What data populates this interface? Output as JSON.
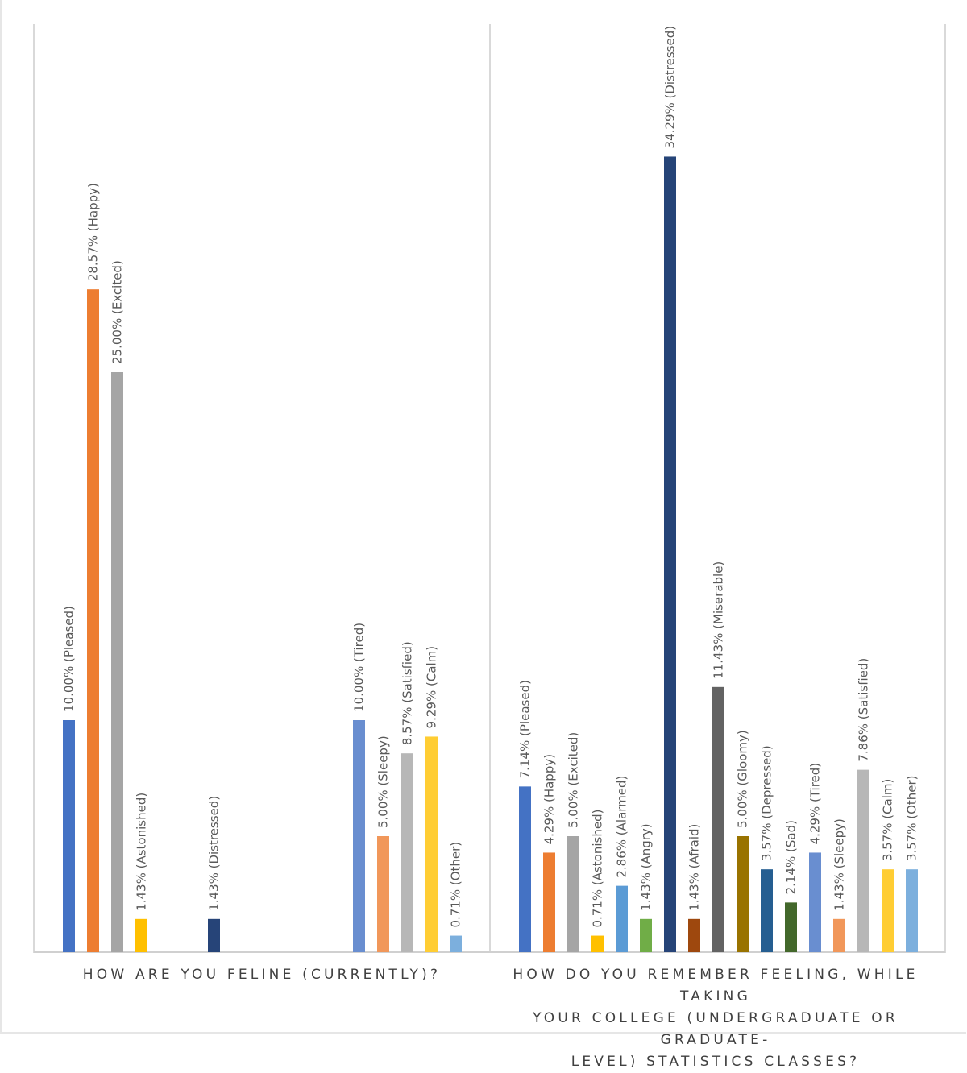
{
  "chart_data": [
    {
      "type": "bar",
      "title": "",
      "xlabel": "How are you feline (currently)?",
      "ylabel": "",
      "ylim": [
        0,
        40
      ],
      "grid": false,
      "legend": "none",
      "categories": [
        "Pleased",
        "Happy",
        "Excited",
        "Astonished",
        "Alarmed",
        "Angry",
        "Distressed",
        "Afraid",
        "Miserable",
        "Gloomy",
        "Depressed",
        "Sad",
        "Tired",
        "Sleepy",
        "Satisfied",
        "Calm",
        "Other"
      ],
      "values": [
        10.0,
        28.57,
        25.0,
        1.43,
        0,
        0,
        1.43,
        0,
        0,
        0,
        0,
        0,
        10.0,
        5.0,
        8.57,
        9.29,
        0.71
      ],
      "data_labels": [
        "10.00% (Pleased)",
        "28.57% (Happy)",
        "25.00% (Excited)",
        "1.43% (Astonished)",
        "",
        "",
        "1.43% (Distressed)",
        "",
        "",
        "",
        "",
        "",
        "10.00% (Tired)",
        "5.00% (Sleepy)",
        "8.57% (Satisfied)",
        "9.29% (Calm)",
        "0.71% (Other)"
      ],
      "colors": [
        "#4472C4",
        "#ED7D31",
        "#A5A5A5",
        "#FFC000",
        "#5B9BD5",
        "#70AD47",
        "#264478",
        "#9E480E",
        "#636363",
        "#997300",
        "#255E91",
        "#43682B",
        "#698ED0",
        "#F1975A",
        "#B7B7B7",
        "#FFCD33",
        "#7CAFDD"
      ],
      "unit": "%"
    },
    {
      "type": "bar",
      "title": "",
      "xlabel": "How do you remember feeling, while taking your college (undergraduate or graduate-level) statistics classes?",
      "xlabel_lines": [
        "How do you remember feeling, while taking",
        "your college (undergraduate or graduate-",
        "level) statistics classes?"
      ],
      "ylabel": "",
      "ylim": [
        0,
        40
      ],
      "grid": false,
      "legend": "none",
      "categories": [
        "Pleased",
        "Happy",
        "Excited",
        "Astonished",
        "Alarmed",
        "Angry",
        "Distressed",
        "Afraid",
        "Miserable",
        "Gloomy",
        "Depressed",
        "Sad",
        "Tired",
        "Sleepy",
        "Satisfied",
        "Calm",
        "Other"
      ],
      "values": [
        7.14,
        4.29,
        5.0,
        0.71,
        2.86,
        1.43,
        34.29,
        1.43,
        11.43,
        5.0,
        3.57,
        2.14,
        4.29,
        1.43,
        7.86,
        3.57,
        3.57
      ],
      "data_labels": [
        "7.14% (Pleased)",
        "4.29% (Happy)",
        "5.00% (Excited)",
        "0.71% (Astonished)",
        "2.86% (Alarmed)",
        "1.43% (Angry)",
        "34.29% (Distressed)",
        "1.43% (Afraid)",
        "11.43% (Miserable)",
        "5.00% (Gloomy)",
        "3.57% (Depressed)",
        "2.14% (Sad)",
        "4.29% (Tired)",
        "1.43% (Sleepy)",
        "7.86% (Satisfied)",
        "3.57% (Calm)",
        "3.57% (Other)"
      ],
      "colors": [
        "#4472C4",
        "#ED7D31",
        "#A5A5A5",
        "#FFC000",
        "#5B9BD5",
        "#70AD47",
        "#264478",
        "#9E480E",
        "#636363",
        "#997300",
        "#255E91",
        "#43682B",
        "#698ED0",
        "#F1975A",
        "#B7B7B7",
        "#FFCD33",
        "#7CAFDD"
      ],
      "unit": "%"
    }
  ]
}
